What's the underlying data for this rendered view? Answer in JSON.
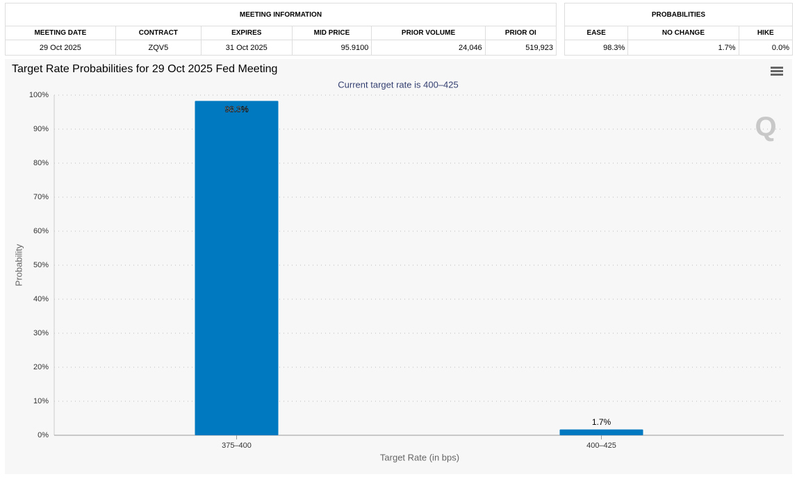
{
  "meeting_table": {
    "title": "MEETING INFORMATION",
    "headers": [
      "MEETING DATE",
      "CONTRACT",
      "EXPIRES",
      "MID PRICE",
      "PRIOR VOLUME",
      "PRIOR OI"
    ],
    "row": [
      "29 Oct 2025",
      "ZQV5",
      "31 Oct 2025",
      "95.9100",
      "24,046",
      "519,923"
    ]
  },
  "probabilities_table": {
    "title": "PROBABILITIES",
    "headers": [
      "EASE",
      "NO CHANGE",
      "HIKE"
    ],
    "row": [
      "98.3%",
      "1.7%",
      "0.0%"
    ]
  },
  "chart_data": {
    "type": "bar",
    "title": "Target Rate Probabilities for 29 Oct 2025 Fed Meeting",
    "subtitle": "Current target rate is 400–425",
    "x_label": "Target Rate (in bps)",
    "y_label": "Probability",
    "categories": [
      "375–400",
      "400–425"
    ],
    "values": [
      98.3,
      1.7
    ],
    "value_labels": [
      "98.3%",
      "1.7%"
    ],
    "color": "#0079c1",
    "grid": true,
    "ylim": [
      0,
      100
    ],
    "yticks": [
      {
        "value": 0,
        "label": "0%"
      },
      {
        "value": 10,
        "label": "10%"
      },
      {
        "value": 20,
        "label": "20%"
      },
      {
        "value": 30,
        "label": "30%"
      },
      {
        "value": 40,
        "label": "40%"
      },
      {
        "value": 50,
        "label": "50%"
      },
      {
        "value": 60,
        "label": "60%"
      },
      {
        "value": 70,
        "label": "70%"
      },
      {
        "value": 80,
        "label": "80%"
      },
      {
        "value": 90,
        "label": "90%"
      },
      {
        "value": 100,
        "label": "100%"
      }
    ]
  }
}
